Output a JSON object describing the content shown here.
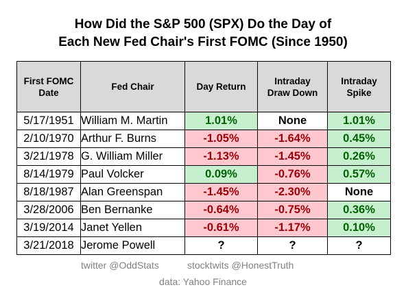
{
  "title": {
    "line1": "How Did the S&P 500 (SPX) Do the Day of",
    "line2": "Each New Fed Chair's First FOMC (Since 1950)"
  },
  "headers": {
    "date_line1": "First FOMC",
    "date_line2": "Date",
    "chair": "Fed Chair",
    "day_return": "Day Return",
    "drawdown_line1": "Intraday",
    "drawdown_line2": "Draw Down",
    "spike_line1": "Intraday",
    "spike_line2": "Spike"
  },
  "rows": [
    {
      "date": "5/17/1951",
      "chair": "William M. Martin",
      "day_return": "1.01%",
      "day_return_tone": "pos",
      "drawdown": "None",
      "drawdown_tone": "plain",
      "spike": "1.01%",
      "spike_tone": "pos"
    },
    {
      "date": "2/10/1970",
      "chair": "Arthur F. Burns",
      "day_return": "-1.05%",
      "day_return_tone": "neg",
      "drawdown": "-1.64%",
      "drawdown_tone": "neg",
      "spike": "0.45%",
      "spike_tone": "pos"
    },
    {
      "date": "3/21/1978",
      "chair": "G. William Miller",
      "day_return": "-1.13%",
      "day_return_tone": "neg",
      "drawdown": "-1.45%",
      "drawdown_tone": "neg",
      "spike": "0.26%",
      "spike_tone": "pos"
    },
    {
      "date": "8/14/1979",
      "chair": "Paul Volcker",
      "day_return": "0.09%",
      "day_return_tone": "pos",
      "drawdown": "-0.76%",
      "drawdown_tone": "neg",
      "spike": "0.57%",
      "spike_tone": "pos"
    },
    {
      "date": "8/18/1987",
      "chair": "Alan Greenspan",
      "day_return": "-1.45%",
      "day_return_tone": "neg",
      "drawdown": "-2.30%",
      "drawdown_tone": "neg",
      "spike": "None",
      "spike_tone": "plain"
    },
    {
      "date": "3/28/2006",
      "chair": "Ben Bernanke",
      "day_return": "-0.64%",
      "day_return_tone": "neg",
      "drawdown": "-0.75%",
      "drawdown_tone": "neg",
      "spike": "0.36%",
      "spike_tone": "pos"
    },
    {
      "date": "3/19/2014",
      "chair": "Janet Yellen",
      "day_return": "-0.61%",
      "day_return_tone": "neg",
      "drawdown": "-1.17%",
      "drawdown_tone": "neg",
      "spike": "0.10%",
      "spike_tone": "pos"
    },
    {
      "date": "3/21/2018",
      "chair": "Jerome Powell",
      "day_return": "?",
      "day_return_tone": "plain",
      "drawdown": "?",
      "drawdown_tone": "plain",
      "spike": "?",
      "spike_tone": "plain"
    }
  ],
  "colors": {
    "header_bg": "#d9d9d9",
    "positive_bg": "#c6efce",
    "positive_text": "#006100",
    "negative_bg": "#ffc7ce",
    "negative_text": "#9c0006",
    "credit_text": "#808080"
  },
  "credits": {
    "twitter": "twitter @OddStats",
    "stocktwits": "stocktwits @HonestTruth",
    "data": "data: Yahoo Finance"
  }
}
